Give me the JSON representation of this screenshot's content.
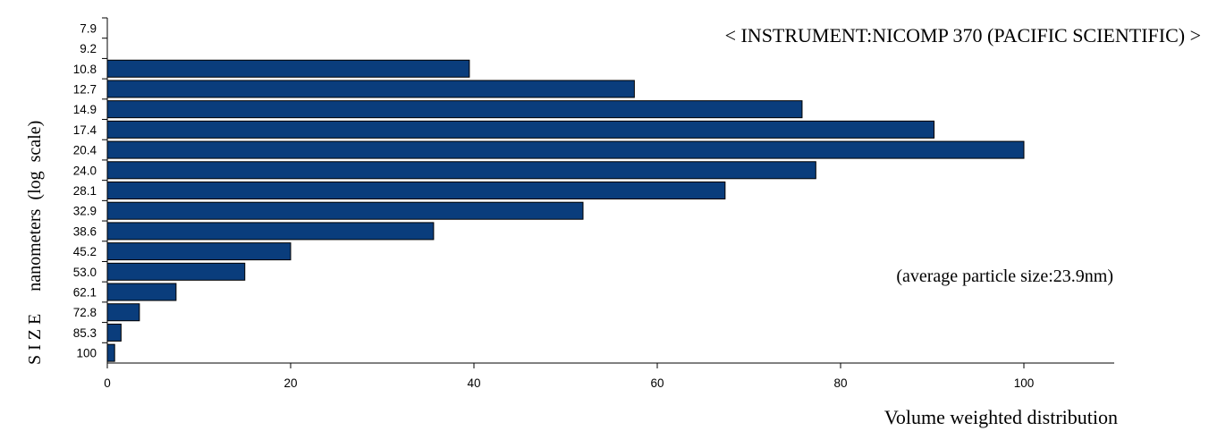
{
  "chart_data": {
    "type": "bar",
    "orientation": "horizontal",
    "title": "< INSTRUMENT:NICOMP 370 (PACIFIC SCIENTIFIC) >",
    "annotation": "(average particle size:23.9nm)",
    "xlabel": "Volume weighted distribution",
    "ylabel": "S I Z E     nanometers  (log  scale)",
    "categories": [
      "7.9",
      "9.2",
      "10.8",
      "12.7",
      "14.9",
      "17.4",
      "20.4",
      "24.0",
      "28.1",
      "32.9",
      "38.6",
      "45.2",
      "53.0",
      "62.1",
      "72.8",
      "85.3",
      "100"
    ],
    "values": [
      0,
      0,
      39.5,
      57.5,
      75.8,
      90.2,
      100,
      77.3,
      67.4,
      51.9,
      35.6,
      20.0,
      15.0,
      7.5,
      3.5,
      1.5,
      0.8
    ],
    "xticks": [
      0,
      20,
      40,
      60,
      80,
      100
    ],
    "xlim": [
      0,
      110
    ],
    "bar_color": "#0a3d7c",
    "grid": false,
    "legend": "none"
  }
}
